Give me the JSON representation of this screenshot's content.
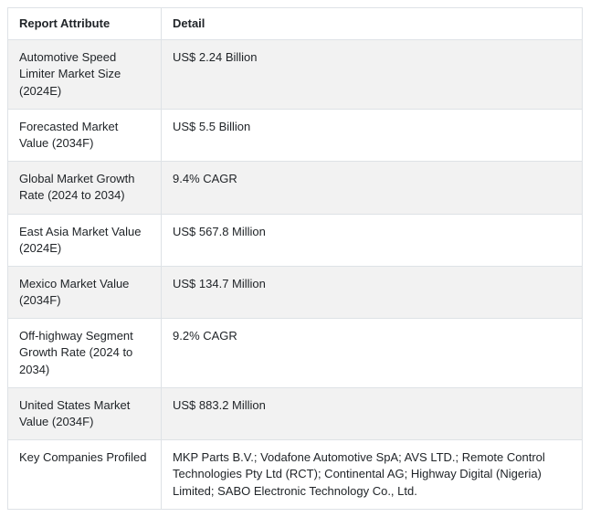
{
  "table": {
    "headers": [
      "Report Attribute",
      "Detail"
    ],
    "rows": [
      {
        "attribute": "Automotive Speed Limiter Market Size (2024E)",
        "detail": "US$ 2.24 Billion"
      },
      {
        "attribute": "Forecasted Market Value (2034F)",
        "detail": "US$ 5.5 Billion"
      },
      {
        "attribute": "Global Market Growth Rate (2024 to 2034)",
        "detail": "9.4% CAGR"
      },
      {
        "attribute": "East Asia Market Value (2024E)",
        "detail": "US$ 567.8 Million"
      },
      {
        "attribute": "Mexico Market Value (2034F)",
        "detail": "US$ 134.7 Million"
      },
      {
        "attribute": "Off-highway Segment Growth Rate (2024 to 2034)",
        "detail": "9.2% CAGR"
      },
      {
        "attribute": "United States Market Value (2034F)",
        "detail": "US$ 883.2 Million"
      },
      {
        "attribute": "Key Companies Profiled",
        "detail": "MKP Parts B.V.; Vodafone Automotive SpA; AVS LTD.; Remote Control Technologies Pty Ltd (RCT); Continental AG; Highway Digital (Nigeria) Limited; SABO Electronic Technology Co., Ltd."
      }
    ],
    "colors": {
      "border": "#dee2e6",
      "stripe_row_background": "#f2f2f2",
      "text": "#212529"
    }
  }
}
